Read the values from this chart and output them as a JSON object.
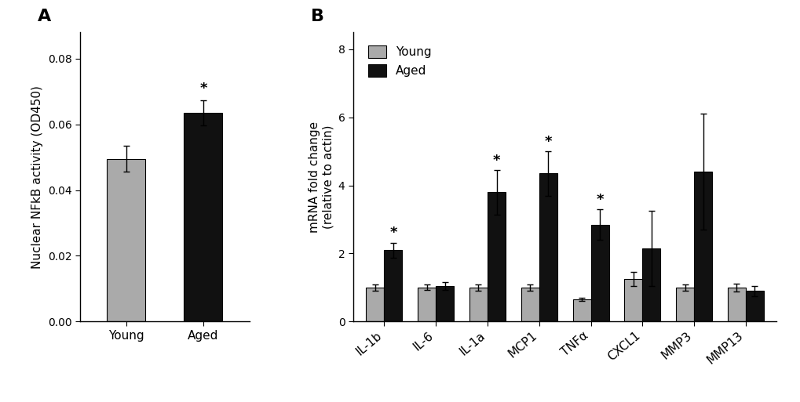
{
  "panel_A": {
    "categories": [
      "Young",
      "Aged"
    ],
    "values": [
      0.0495,
      0.0635
    ],
    "errors": [
      0.004,
      0.0038
    ],
    "colors": [
      "#aaaaaa",
      "#111111"
    ],
    "ylabel": "Nuclear NFkB activity (OD450)",
    "ylim": [
      0,
      0.088
    ],
    "yticks": [
      0.0,
      0.02,
      0.04,
      0.06,
      0.08
    ],
    "ytick_labels": [
      "0.00",
      "0.02",
      "0.04",
      "0.06",
      "0.08"
    ],
    "significant": [
      false,
      true
    ],
    "panel_label": "A"
  },
  "panel_B": {
    "categories": [
      "IL-1b",
      "IL-6",
      "IL-1a",
      "MCP1",
      "TNFα",
      "CXCL1",
      "MMP3",
      "MMP13"
    ],
    "young_values": [
      1.0,
      1.0,
      1.0,
      1.0,
      0.65,
      1.25,
      1.0,
      1.0
    ],
    "aged_values": [
      2.1,
      1.05,
      3.8,
      4.35,
      2.85,
      2.15,
      4.4,
      0.9
    ],
    "young_errors": [
      0.1,
      0.08,
      0.1,
      0.1,
      0.05,
      0.2,
      0.1,
      0.12
    ],
    "aged_errors": [
      0.22,
      0.12,
      0.65,
      0.65,
      0.45,
      1.1,
      1.7,
      0.15
    ],
    "young_color": "#aaaaaa",
    "aged_color": "#111111",
    "ylabel": "mRNA fold change\n(relative to actin)",
    "ylim": [
      0,
      8.5
    ],
    "yticks": [
      0,
      2,
      4,
      6,
      8
    ],
    "ytick_labels": [
      "0",
      "2",
      "4",
      "6",
      "8"
    ],
    "significant_aged": [
      true,
      false,
      true,
      true,
      true,
      false,
      false,
      false
    ],
    "panel_label": "B",
    "legend_labels": [
      "Young",
      "Aged"
    ]
  },
  "bar_width": 0.35,
  "capsize": 3,
  "font_size": 11,
  "label_font_size": 11,
  "tick_font_size": 10,
  "panel_label_font_size": 16
}
